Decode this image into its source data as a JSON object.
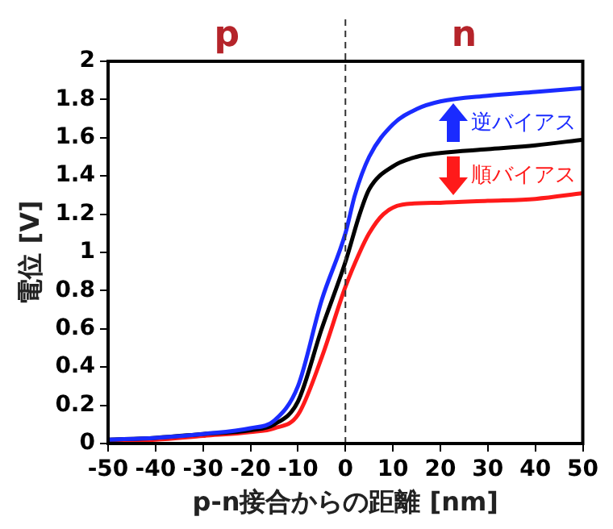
{
  "chart_data": {
    "type": "line",
    "xlabel": "p-n接合からの距離 [nm]",
    "ylabel": "電位 [V]",
    "xlim": [
      -50,
      50
    ],
    "xticks": [
      -50,
      -40,
      -30,
      -20,
      -10,
      0,
      10,
      20,
      30,
      40,
      50
    ],
    "ylim": [
      0,
      2
    ],
    "yticks": [
      0,
      0.2,
      0.4,
      0.6,
      0.8,
      1,
      1.2,
      1.4,
      1.6,
      1.8,
      2
    ],
    "grid": false,
    "legend": false,
    "marker": "none",
    "line_style": "solid",
    "series": [
      {
        "color": "#1a2bff",
        "x": [
          -50,
          -40,
          -30,
          -20,
          -15,
          -10,
          -5,
          0,
          2,
          5,
          10,
          15,
          20,
          30,
          40,
          50
        ],
        "values": [
          0.02,
          0.03,
          0.05,
          0.08,
          0.12,
          0.3,
          0.75,
          1.1,
          1.3,
          1.5,
          1.67,
          1.75,
          1.79,
          1.82,
          1.84,
          1.86
        ]
      },
      {
        "color": "#000000",
        "x": [
          -50,
          -40,
          -30,
          -20,
          -15,
          -10,
          -5,
          0,
          3,
          5,
          10,
          15,
          20,
          30,
          40,
          50
        ],
        "values": [
          0.02,
          0.03,
          0.05,
          0.07,
          0.1,
          0.22,
          0.6,
          0.95,
          1.2,
          1.33,
          1.45,
          1.5,
          1.52,
          1.54,
          1.56,
          1.59
        ]
      },
      {
        "color": "#ff1a1a",
        "x": [
          -50,
          -40,
          -30,
          -20,
          -15,
          -10,
          -5,
          0,
          3,
          5,
          8,
          12,
          20,
          30,
          40,
          50
        ],
        "values": [
          0.01,
          0.02,
          0.04,
          0.06,
          0.08,
          0.15,
          0.45,
          0.82,
          1.0,
          1.1,
          1.2,
          1.25,
          1.26,
          1.27,
          1.28,
          1.31
        ]
      }
    ],
    "ref_lines": [
      {
        "axis": "x",
        "value": 0,
        "color": "#333333",
        "line_style": "dashed"
      }
    ],
    "annotations": [
      "p",
      "n",
      "逆バイアス",
      "順バイアス"
    ]
  }
}
